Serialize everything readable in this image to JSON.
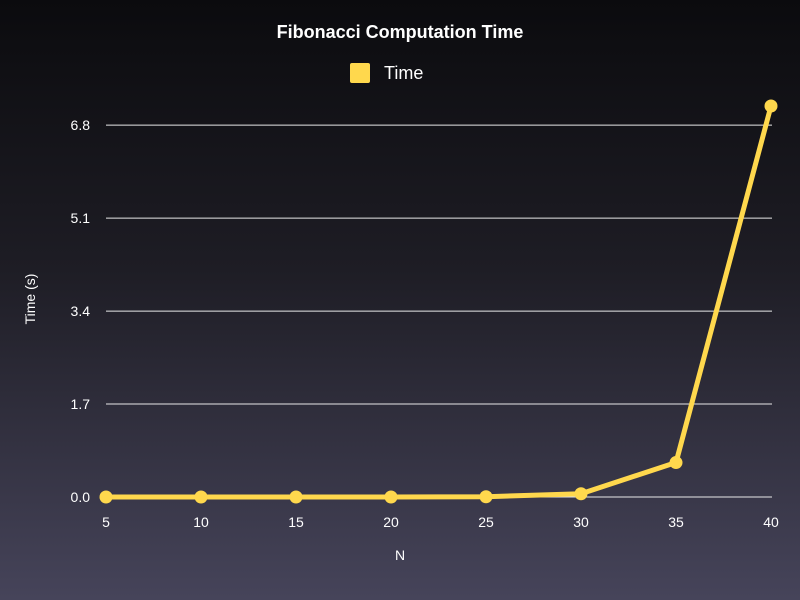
{
  "chart_data": {
    "type": "line",
    "title": "Fibonacci Computation Time",
    "xlabel": "N",
    "ylabel": "Time (s)",
    "x": [
      5,
      10,
      15,
      20,
      25,
      30,
      35,
      40
    ],
    "series": [
      {
        "name": "Time",
        "values": [
          0.0,
          0.0,
          0.0,
          0.0,
          0.005,
          0.06,
          0.63,
          7.15
        ],
        "color": "#ffd84d"
      }
    ],
    "x_ticks": [
      "5",
      "10",
      "15",
      "20",
      "25",
      "30",
      "35",
      "40"
    ],
    "y_ticks": [
      "0.0",
      "1.7",
      "3.4",
      "5.1",
      "6.8"
    ],
    "y_tick_values": [
      0.0,
      1.7,
      3.4,
      5.1,
      6.8
    ],
    "xlim": [
      5,
      40
    ],
    "ylim": [
      0,
      7.15
    ],
    "grid": true,
    "legend_position": "top-center"
  }
}
